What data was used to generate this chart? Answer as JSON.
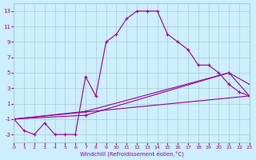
{
  "xlabel": "Windchill (Refroidissement éolien,°C)",
  "bg_color": "#cceeff",
  "grid_color": "#aacccc",
  "line_color": "#990099",
  "xlim": [
    0,
    23
  ],
  "ylim": [
    -4,
    14
  ],
  "xticks": [
    0,
    1,
    2,
    3,
    4,
    5,
    6,
    7,
    8,
    9,
    10,
    11,
    12,
    13,
    14,
    15,
    16,
    17,
    18,
    19,
    20,
    21,
    22,
    23
  ],
  "yticks": [
    -3,
    -1,
    1,
    3,
    5,
    7,
    9,
    11,
    13
  ],
  "series": [
    {
      "x": [
        0,
        1,
        2,
        3,
        4,
        5,
        6,
        7,
        8,
        9,
        10,
        11,
        12,
        13,
        14,
        15,
        16,
        17,
        18,
        19,
        20,
        21,
        22,
        23
      ],
      "y": [
        -1,
        -2.5,
        -3,
        -1.5,
        -3,
        -3,
        -3,
        4.5,
        2,
        9,
        10,
        12,
        13,
        13,
        13,
        10,
        9,
        8,
        6,
        6,
        5,
        3.5,
        2.5,
        2
      ]
    },
    {
      "x": [
        0,
        7,
        21,
        23
      ],
      "y": [
        -1,
        0,
        5,
        2
      ]
    },
    {
      "x": [
        0,
        7,
        21,
        23
      ],
      "y": [
        -1,
        -0.5,
        5,
        3.5
      ]
    },
    {
      "x": [
        0,
        23
      ],
      "y": [
        -1,
        2
      ]
    }
  ]
}
